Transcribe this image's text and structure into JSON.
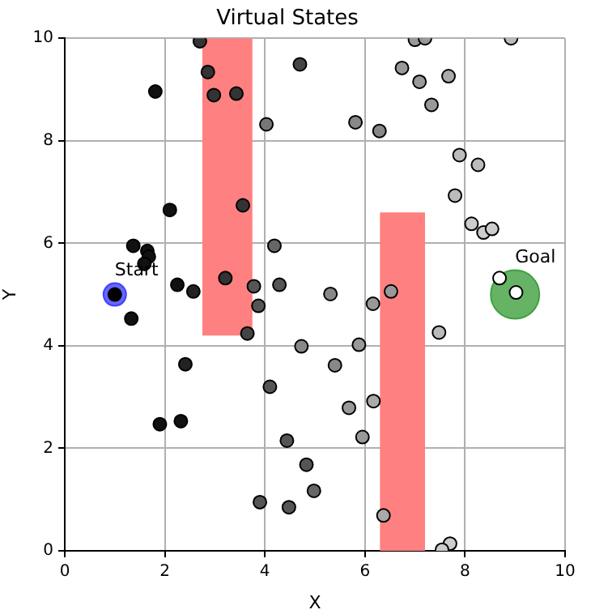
{
  "chart_data": {
    "type": "scatter",
    "title": "Virtual States",
    "xlabel": "X",
    "ylabel": "Y",
    "xlim": [
      0,
      10
    ],
    "ylim": [
      0,
      10
    ],
    "xticks": [
      0,
      2,
      4,
      6,
      8,
      10
    ],
    "yticks": [
      0,
      2,
      4,
      6,
      8,
      10
    ],
    "grid": true,
    "legend": false,
    "marker": "circle",
    "series": [
      {
        "type": "area",
        "marker": "none",
        "color": "#ff8080",
        "x": [
          2.75,
          2.75,
          3.75,
          3.75
        ],
        "values": [
          4.2,
          10,
          10,
          4.2
        ]
      },
      {
        "type": "area",
        "marker": "none",
        "color": "#ff8080",
        "x": [
          6.3,
          6.3,
          7.2,
          7.2
        ],
        "values": [
          0,
          6.6,
          6.6,
          0
        ]
      },
      {
        "name": "Start",
        "type": "scatter",
        "color": "#4040ff",
        "x": [
          1
        ],
        "values": [
          5
        ]
      },
      {
        "name": "Goal",
        "type": "scatter",
        "color": "#40a040",
        "x": [
          9
        ],
        "values": [
          5
        ]
      },
      {
        "type": "scatter",
        "x": [
          1.0,
          2.7,
          2.86,
          2.98,
          3.43,
          1.81,
          4.03,
          4.7,
          2.1,
          3.56,
          1.37,
          1.65,
          1.68,
          1.59,
          4.19,
          2.25,
          2.57,
          3.21,
          3.78,
          4.29,
          3.87,
          3.65,
          1.33,
          2.41,
          4.73,
          4.1,
          1.9,
          2.32,
          4.44,
          4.83,
          4.98,
          3.9,
          4.48,
          7.0,
          7.2,
          8.92,
          6.74,
          7.09,
          7.67,
          7.33,
          5.81,
          6.29,
          7.89,
          8.26,
          7.8,
          8.13,
          8.37,
          8.54,
          8.69,
          9.02,
          6.52,
          5.31,
          6.16,
          7.48,
          5.88,
          5.4,
          6.17,
          5.68,
          5.95,
          6.37,
          7.7,
          7.54
        ],
        "values": [
          5.0,
          9.94,
          9.34,
          8.89,
          8.92,
          8.96,
          8.32,
          9.49,
          6.65,
          6.74,
          5.95,
          5.85,
          5.74,
          5.6,
          5.95,
          5.19,
          5.06,
          5.32,
          5.16,
          5.19,
          4.78,
          4.24,
          4.53,
          3.64,
          3.99,
          3.2,
          2.47,
          2.53,
          2.15,
          1.68,
          1.17,
          0.95,
          0.85,
          9.97,
          10.0,
          10.0,
          9.42,
          9.15,
          9.26,
          8.7,
          8.36,
          8.19,
          7.72,
          7.53,
          6.93,
          6.38,
          6.21,
          6.28,
          5.32,
          5.04,
          5.06,
          5.01,
          4.82,
          4.26,
          4.02,
          3.62,
          2.92,
          2.79,
          2.22,
          0.69,
          0.14,
          0.02
        ],
        "colors": [
          "#000000",
          "#333333",
          "#333333",
          "#333333",
          "#333333",
          "#111111",
          "#777777",
          "#444444",
          "#111111",
          "#333333",
          "#111111",
          "#111111",
          "#111111",
          "#111111",
          "#666666",
          "#111111",
          "#222222",
          "#333333",
          "#555555",
          "#555555",
          "#555555",
          "#444444",
          "#111111",
          "#222222",
          "#888888",
          "#555555",
          "#111111",
          "#111111",
          "#555555",
          "#555555",
          "#666666",
          "#555555",
          "#555555",
          "#999999",
          "#999999",
          "#bbbbbb",
          "#999999",
          "#999999",
          "#aaaaaa",
          "#999999",
          "#888888",
          "#888888",
          "#bbbbbb",
          "#bbbbbb",
          "#bbbbbb",
          "#cccccc",
          "#cccccc",
          "#cccccc",
          "#ffffff",
          "#ffffff",
          "#999999",
          "#888888",
          "#999999",
          "#bbbbbb",
          "#999999",
          "#888888",
          "#aaaaaa",
          "#999999",
          "#999999",
          "#aaaaaa",
          "#cccccc",
          "#cccccc"
        ]
      }
    ]
  }
}
